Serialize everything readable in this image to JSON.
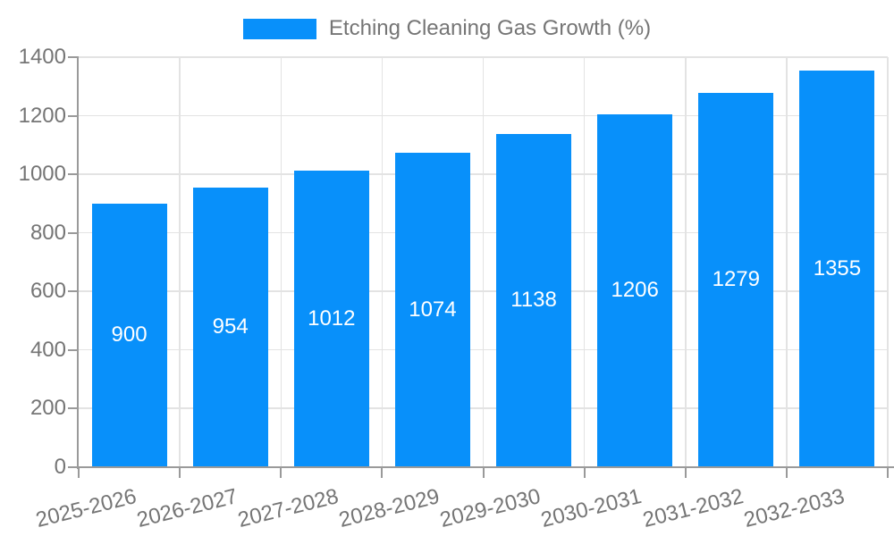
{
  "chart_data": {
    "type": "bar",
    "title": "Etching Cleaning Gas Growth (%)",
    "categories": [
      "2025-2026",
      "2026-2027",
      "2027-2028",
      "2028-2029",
      "2029-2030",
      "2030-2031",
      "2031-2032",
      "2032-2033"
    ],
    "values": [
      900,
      954,
      1012,
      1074,
      1138,
      1206,
      1279,
      1355
    ],
    "xlabel": "",
    "ylabel": "",
    "ylim": [
      0,
      1400
    ],
    "yticks": [
      0,
      200,
      400,
      600,
      800,
      1000,
      1200,
      1400
    ],
    "grid": true,
    "legend_position": "top-center",
    "bar_labels_inside": true,
    "colors": {
      "bar": "#0890fa",
      "bar_label": "#ffffff",
      "tick_text": "#757575",
      "grid": "#e3e3e3",
      "axis": "#9a9a9a",
      "background": "#ffffff"
    }
  }
}
